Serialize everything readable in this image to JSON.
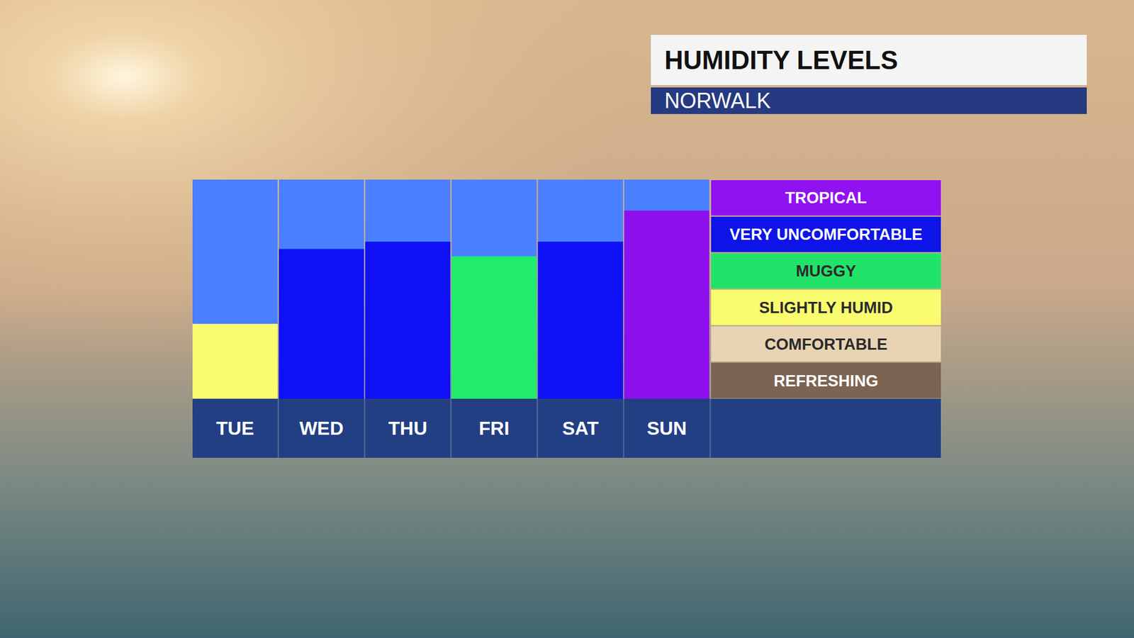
{
  "chart_data": {
    "type": "bar",
    "title": "HUMIDITY LEVELS",
    "subtitle": "NORWALK",
    "categories": [
      "TUE",
      "WED",
      "THU",
      "FRI",
      "SAT",
      "SUN"
    ],
    "values": [
      2.05,
      4.1,
      4.3,
      3.9,
      4.3,
      5.15
    ],
    "colors": [
      "#fafc6f",
      "#1010f5",
      "#1010f5",
      "#22ec6c",
      "#1010f5",
      "#8f10ee"
    ],
    "ylim": [
      0,
      6
    ],
    "grid": false,
    "tick_labels": "x",
    "levels": [
      {
        "label": "REFRESHING",
        "color": "#7c6452",
        "range": [
          0,
          1
        ]
      },
      {
        "label": "COMFORTABLE",
        "color": "#e8d4b3",
        "range": [
          1,
          2
        ]
      },
      {
        "label": "SLIGHTLY HUMID",
        "color": "#fafc6f",
        "range": [
          2,
          3
        ]
      },
      {
        "label": "MUGGY",
        "color": "#22e36a",
        "range": [
          3,
          4
        ]
      },
      {
        "label": "VERY UNCOMFORTABLE",
        "color": "#0e14e8",
        "range": [
          4,
          5
        ]
      },
      {
        "label": "TROPICAL",
        "color": "#9012f0",
        "range": [
          5,
          6
        ]
      }
    ]
  }
}
